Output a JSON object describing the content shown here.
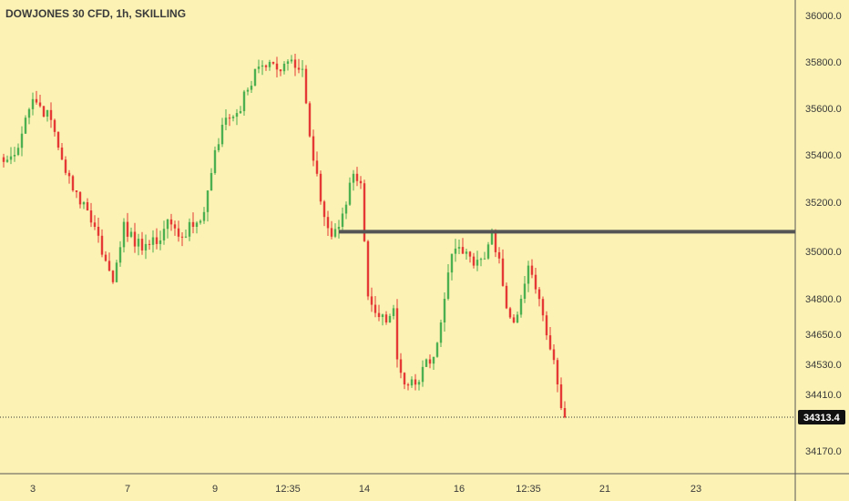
{
  "header": {
    "symbol_title": "DOWJONES 30 CFD, 1h, SKILLING"
  },
  "colors": {
    "background": "#fbf2b4",
    "up_candle": "#4caf50",
    "down_candle": "#e53935",
    "resistance_line": "#555555",
    "text": "#3a3a3a",
    "price_badge_bg": "#111111",
    "price_badge_text": "#ffffff"
  },
  "chart_data": {
    "type": "candlestick",
    "title": "DOWJONES 30 CFD, 1h, SKILLING",
    "y_ticks": [
      36000.0,
      35800.0,
      35600.0,
      35400.0,
      35200.0,
      35000.0,
      34800.0,
      34650.0,
      34530.0,
      34410.0,
      34170.0
    ],
    "y_tick_labels": [
      "36000.0",
      "35800.0",
      "35600.0",
      "35400.0",
      "35200.0",
      "35000.0",
      "34800.0",
      "34650.0",
      "34530.0",
      "34410.0",
      "34170.0"
    ],
    "x_tick_labels": [
      "3",
      "7",
      "9",
      "12:35",
      "14",
      "16",
      "12:35",
      "21",
      "23"
    ],
    "x_tick_bar_index": [
      8,
      34,
      58,
      78,
      99,
      125,
      144,
      165,
      190
    ],
    "current_price": 34313.4,
    "current_price_label": "34313.4",
    "resistance_level": 35080,
    "series": [
      {
        "ohlc_anchor_closes": [
          [
            0,
            35370
          ],
          [
            3,
            35400
          ],
          [
            6,
            35560
          ],
          [
            8,
            35640
          ],
          [
            10,
            35610
          ],
          [
            13,
            35550
          ],
          [
            16,
            35380
          ],
          [
            19,
            35250
          ],
          [
            22,
            35200
          ],
          [
            25,
            35100
          ],
          [
            28,
            34960
          ],
          [
            30,
            34870
          ],
          [
            33,
            35120
          ],
          [
            36,
            35020
          ],
          [
            39,
            35030
          ],
          [
            42,
            35030
          ],
          [
            45,
            35130
          ],
          [
            48,
            35060
          ],
          [
            52,
            35100
          ],
          [
            55,
            35160
          ],
          [
            58,
            35420
          ],
          [
            61,
            35560
          ],
          [
            64,
            35580
          ],
          [
            67,
            35680
          ],
          [
            70,
            35780
          ],
          [
            73,
            35800
          ],
          [
            76,
            35760
          ],
          [
            79,
            35810
          ],
          [
            82,
            35770
          ],
          [
            84,
            35480
          ],
          [
            86,
            35320
          ],
          [
            88,
            35140
          ],
          [
            90,
            35060
          ],
          [
            92,
            35100
          ],
          [
            94,
            35190
          ],
          [
            96,
            35320
          ],
          [
            98,
            35280
          ],
          [
            100,
            34810
          ],
          [
            102,
            34740
          ],
          [
            105,
            34700
          ],
          [
            107,
            34760
          ],
          [
            108,
            34550
          ],
          [
            110,
            34450
          ],
          [
            112,
            34470
          ],
          [
            114,
            34460
          ],
          [
            116,
            34550
          ],
          [
            118,
            34560
          ],
          [
            120,
            34700
          ],
          [
            121,
            34800
          ],
          [
            123,
            34990
          ],
          [
            126,
            34990
          ],
          [
            129,
            34940
          ],
          [
            132,
            34970
          ],
          [
            134,
            35080
          ],
          [
            136,
            34970
          ],
          [
            138,
            34760
          ],
          [
            140,
            34700
          ],
          [
            142,
            34800
          ],
          [
            144,
            34940
          ],
          [
            146,
            34840
          ],
          [
            148,
            34730
          ],
          [
            150,
            34590
          ],
          [
            152,
            34450
          ],
          [
            154,
            34313
          ]
        ],
        "session_high": 35850,
        "session_low": 34280
      }
    ],
    "grid": false,
    "legend": "none"
  }
}
